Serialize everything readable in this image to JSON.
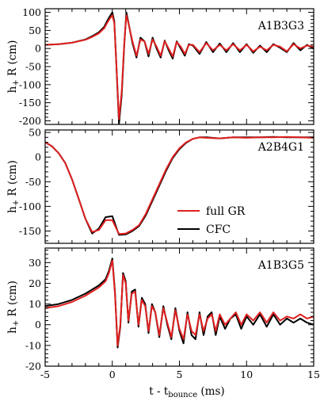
{
  "figure": {
    "xlabel": "t - t",
    "xlabel_sub": "bounce",
    "xlabel_unit": " (ms)",
    "ylabel_main": "h",
    "ylabel_sub": "+",
    "ylabel_unit": " R (cm)",
    "legend": [
      {
        "label": "full GR",
        "color": "#e02020"
      },
      {
        "label": "CFC",
        "color": "#000000"
      }
    ]
  },
  "chart_data": [
    {
      "type": "line",
      "panel": "A1B3G3",
      "xlim": [
        -5,
        15
      ],
      "ylim": [
        -210,
        110
      ],
      "yticks": [
        100,
        50,
        0,
        -50,
        -100,
        -150,
        -200
      ],
      "xticks": [
        -5,
        0,
        5,
        10,
        15
      ],
      "xlabel": "t - tbounce (ms)",
      "ylabel": "h+ R (cm)",
      "series": [
        {
          "name": "full GR",
          "color": "#e02020",
          "x": [
            -5,
            -4,
            -3,
            -2,
            -1.5,
            -1,
            -0.6,
            -0.4,
            -0.2,
            0,
            0.15,
            0.3,
            0.5,
            0.7,
            0.9,
            1.05,
            1.2,
            1.5,
            1.8,
            2.1,
            2.4,
            2.7,
            3.0,
            3.3,
            3.6,
            3.9,
            4.2,
            4.5,
            4.8,
            5.1,
            5.4,
            5.7,
            6.0,
            6.5,
            7,
            7.5,
            8,
            8.5,
            9,
            9.5,
            10,
            10.5,
            11,
            11.5,
            12,
            12.5,
            13,
            13.5,
            14,
            14.5,
            15
          ],
          "y": [
            10,
            12,
            16,
            24,
            32,
            42,
            56,
            70,
            82,
            92,
            70,
            -40,
            -195,
            -120,
            20,
            92,
            70,
            20,
            -20,
            25,
            20,
            -15,
            25,
            5,
            -20,
            20,
            0,
            -22,
            18,
            5,
            -15,
            10,
            10,
            -10,
            15,
            -5,
            10,
            -5,
            12,
            -5,
            10,
            -8,
            5,
            -5,
            10,
            5,
            -8,
            12,
            0,
            8,
            5
          ]
        },
        {
          "name": "CFC",
          "color": "#000000",
          "x": [
            -5,
            -4,
            -3,
            -2,
            -1.5,
            -1,
            -0.6,
            -0.4,
            -0.2,
            0,
            0.15,
            0.3,
            0.5,
            0.7,
            0.9,
            1.05,
            1.2,
            1.5,
            1.8,
            2.1,
            2.4,
            2.7,
            3.0,
            3.3,
            3.6,
            3.9,
            4.2,
            4.5,
            4.8,
            5.1,
            5.4,
            5.7,
            6.0,
            6.5,
            7,
            7.5,
            8,
            8.5,
            9,
            9.5,
            10,
            10.5,
            11,
            11.5,
            12,
            12.5,
            13,
            13.5,
            14,
            14.5,
            15
          ],
          "y": [
            10,
            12,
            16,
            25,
            34,
            45,
            60,
            75,
            88,
            100,
            75,
            -40,
            -208,
            -130,
            15,
            100,
            72,
            15,
            -25,
            30,
            20,
            -22,
            30,
            0,
            -25,
            22,
            -5,
            -28,
            20,
            0,
            -20,
            12,
            8,
            -15,
            18,
            -10,
            14,
            -10,
            15,
            -10,
            12,
            -12,
            8,
            -10,
            12,
            2,
            -10,
            15,
            -5,
            10,
            0
          ]
        }
      ]
    },
    {
      "type": "line",
      "panel": "A2B4G1",
      "xlim": [
        -5,
        15
      ],
      "ylim": [
        -175,
        55
      ],
      "yticks": [
        50,
        0,
        -50,
        -100,
        -150
      ],
      "xticks": [
        -5,
        0,
        5,
        10,
        15
      ],
      "xlabel": "t - tbounce (ms)",
      "ylabel": "h+ R (cm)",
      "series": [
        {
          "name": "full GR",
          "color": "#e02020",
          "x": [
            -5,
            -4.5,
            -4,
            -3.5,
            -3,
            -2.5,
            -2,
            -1.5,
            -1,
            -0.5,
            0,
            0.5,
            1,
            1.5,
            2,
            2.5,
            3,
            3.5,
            4,
            4.5,
            5,
            5.5,
            6,
            6.5,
            7,
            8,
            9,
            10,
            11,
            12,
            13,
            14,
            15
          ],
          "y": [
            30,
            22,
            8,
            -12,
            -45,
            -85,
            -125,
            -152,
            -148,
            -128,
            -128,
            -156,
            -155,
            -148,
            -138,
            -115,
            -85,
            -55,
            -25,
            0,
            18,
            30,
            37,
            40,
            39,
            38,
            40,
            39,
            40,
            40,
            41,
            40,
            39
          ]
        },
        {
          "name": "CFC",
          "color": "#000000",
          "x": [
            -5,
            -4.5,
            -4,
            -3.5,
            -3,
            -2.5,
            -2,
            -1.5,
            -1,
            -0.5,
            0,
            0.5,
            1,
            1.5,
            2,
            2.5,
            3,
            3.5,
            4,
            4.5,
            5,
            5.5,
            6,
            6.5,
            7,
            8,
            9,
            10,
            11,
            12,
            13,
            14,
            15
          ],
          "y": [
            30,
            22,
            8,
            -12,
            -45,
            -85,
            -125,
            -155,
            -145,
            -122,
            -120,
            -158,
            -157,
            -150,
            -140,
            -118,
            -88,
            -58,
            -28,
            -2,
            16,
            29,
            37,
            40,
            40,
            38,
            40,
            40,
            40,
            41,
            40,
            40,
            40
          ]
        }
      ]
    },
    {
      "type": "line",
      "panel": "A1B3G5",
      "xlim": [
        -5,
        15
      ],
      "ylim": [
        -20,
        37
      ],
      "yticks": [
        30,
        20,
        10,
        0,
        -10,
        -20
      ],
      "xticks": [
        -5,
        0,
        5,
        10,
        15
      ],
      "xlabel": "t - tbounce (ms)",
      "ylabel": "h+ R (cm)",
      "series": [
        {
          "name": "full GR",
          "color": "#e02020",
          "x": [
            -5,
            -4,
            -3,
            -2,
            -1.5,
            -1,
            -0.5,
            -0.25,
            0,
            0.2,
            0.4,
            0.6,
            0.8,
            1.0,
            1.2,
            1.45,
            1.7,
            1.95,
            2.2,
            2.45,
            2.7,
            2.95,
            3.2,
            3.5,
            3.8,
            4.1,
            4.4,
            4.7,
            5.0,
            5.3,
            5.6,
            5.9,
            6.2,
            6.5,
            6.8,
            7.1,
            7.4,
            7.7,
            8.0,
            8.4,
            8.8,
            9.2,
            9.6,
            10,
            10.5,
            11,
            11.5,
            12,
            12.5,
            13,
            13.5,
            14,
            14.5,
            15
          ],
          "y": [
            8,
            9,
            11,
            14,
            16,
            18,
            21,
            25,
            31,
            15,
            -10,
            0,
            24,
            20,
            2,
            15,
            16,
            0,
            12,
            9,
            -3,
            9,
            6,
            -5,
            8,
            1,
            -6,
            7,
            -2,
            -7,
            5,
            -3,
            -5,
            5,
            -3,
            3,
            5,
            -3,
            5,
            0,
            3,
            6,
            0,
            5,
            2,
            6,
            1,
            6,
            2,
            4,
            3,
            5,
            3,
            4
          ]
        },
        {
          "name": "CFC",
          "color": "#000000",
          "x": [
            -5,
            -4,
            -3,
            -2,
            -1.5,
            -1,
            -0.5,
            -0.25,
            0,
            0.2,
            0.4,
            0.6,
            0.8,
            1.0,
            1.2,
            1.45,
            1.7,
            1.95,
            2.2,
            2.45,
            2.7,
            2.95,
            3.2,
            3.5,
            3.8,
            4.1,
            4.4,
            4.7,
            5.0,
            5.3,
            5.6,
            5.9,
            6.2,
            6.5,
            6.8,
            7.1,
            7.4,
            7.7,
            8.0,
            8.4,
            8.8,
            9.2,
            9.6,
            10,
            10.5,
            11,
            11.5,
            12,
            12.5,
            13,
            13.5,
            14,
            14.5,
            15
          ],
          "y": [
            9,
            10,
            12,
            15,
            17,
            19,
            22,
            26,
            32,
            16,
            -11,
            -1,
            25,
            21,
            1,
            16,
            17,
            -1,
            13,
            10,
            -4,
            10,
            6,
            -6,
            9,
            0,
            -7,
            8,
            -3,
            -9,
            6,
            -5,
            -7,
            6,
            -5,
            4,
            6,
            -5,
            4,
            -2,
            3,
            5,
            -2,
            4,
            0,
            5,
            -1,
            5,
            0,
            3,
            1,
            3,
            1,
            0
          ]
        }
      ]
    }
  ]
}
